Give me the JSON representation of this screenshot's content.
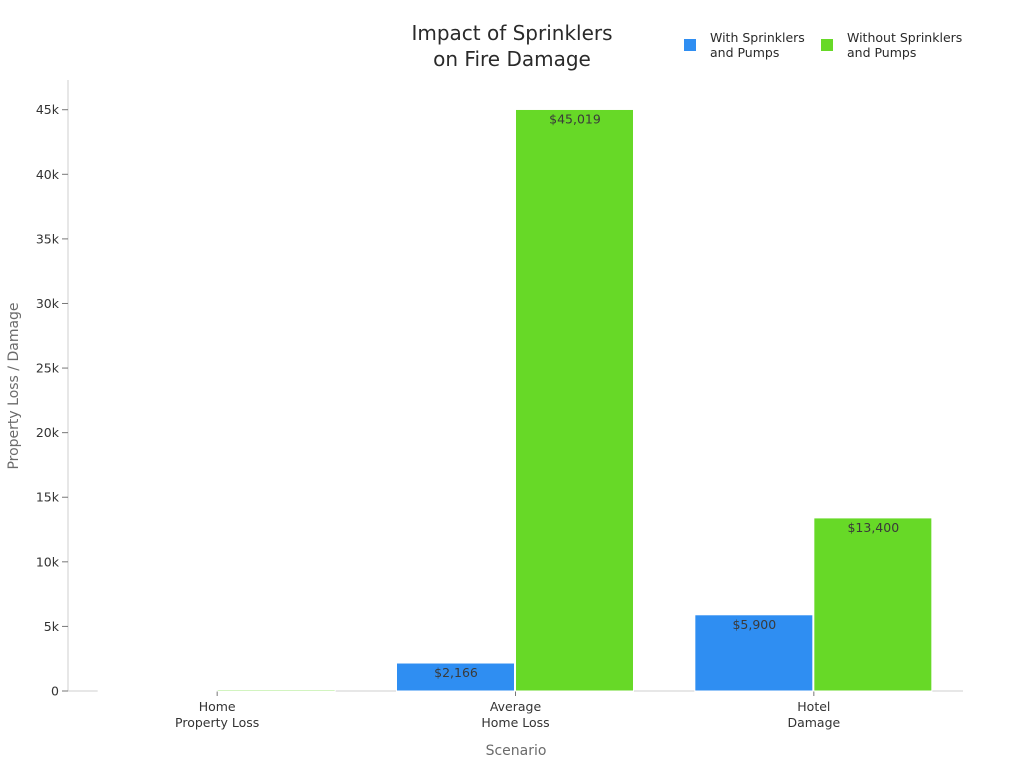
{
  "chart_data": {
    "type": "bar",
    "title": [
      "Impact of Sprinklers",
      "on Fire Damage"
    ],
    "xlabel": "Scenario",
    "ylabel": "Property Loss / Damage",
    "categories": [
      [
        "Home",
        "Property Loss"
      ],
      [
        "Average",
        "Home Loss"
      ],
      [
        "Hotel",
        "Damage"
      ]
    ],
    "series": [
      {
        "name": [
          "With Sprinklers",
          "and Pumps"
        ],
        "color": "#2f8ef2",
        "values": [
          0,
          2166,
          5900
        ],
        "labels": [
          "",
          "$2,166",
          "$5,900"
        ]
      },
      {
        "name": [
          "Without Sprinklers",
          "and Pumps"
        ],
        "color": "#67d927",
        "values": [
          100,
          45019,
          13400
        ],
        "labels": [
          "",
          "$45,019",
          "$13,400"
        ]
      }
    ],
    "ylim": [
      0,
      47300
    ],
    "yticks": [
      0,
      5000,
      10000,
      15000,
      20000,
      25000,
      30000,
      35000,
      40000,
      45000
    ],
    "ytick_labels": [
      "0",
      "5k",
      "10k",
      "15k",
      "20k",
      "25k",
      "30k",
      "35k",
      "40k",
      "45k"
    ],
    "grid": false,
    "legend_position": "top-right"
  }
}
